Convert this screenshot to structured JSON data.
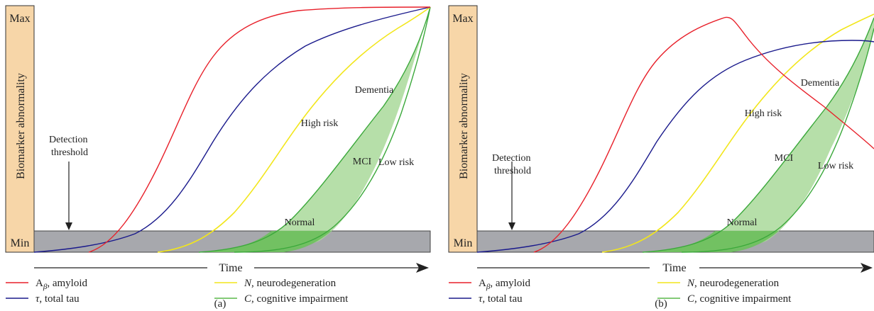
{
  "panels": [
    {
      "id": "a",
      "caption": "(a)",
      "y_axis": {
        "label": "Biomarker abnormality",
        "max": "Max",
        "min": "Min"
      },
      "x_axis": {
        "label": "Time"
      },
      "detection_threshold": "Detection\nthreshold",
      "region_labels": {
        "normal": "Normal",
        "mci": "MCI",
        "dementia": "Dementia",
        "high_risk": "High risk",
        "low_risk": "Low risk"
      },
      "legend": [
        {
          "id": "amyloid",
          "prefix": "A",
          "sub": "β",
          "text": ", amyloid",
          "color": "#e8202a"
        },
        {
          "id": "tau",
          "prefix": "τ",
          "sub": "",
          "text": ", total tau",
          "color": "#1a1a8c"
        },
        {
          "id": "neuro",
          "prefix": "N",
          "sub": "",
          "text": ", neurodegeneration",
          "color": "#f2e61b"
        },
        {
          "id": "cog",
          "prefix": "C",
          "sub": "",
          "text": ", cognitive impairment",
          "color": "#5ab84a"
        }
      ]
    },
    {
      "id": "b",
      "caption": "(b)",
      "y_axis": {
        "label": "Biomarker abnormality",
        "max": "Max",
        "min": "Min"
      },
      "x_axis": {
        "label": "Time"
      },
      "detection_threshold": "Detection\nthreshold",
      "region_labels": {
        "normal": "Normal",
        "mci": "MCI",
        "dementia": "Dementia",
        "high_risk": "High risk",
        "low_risk": "Low risk"
      },
      "legend": [
        {
          "id": "amyloid",
          "prefix": "A",
          "sub": "β",
          "text": ", amyloid",
          "color": "#e8202a"
        },
        {
          "id": "tau",
          "prefix": "τ",
          "sub": "",
          "text": ", total tau",
          "color": "#1a1a8c"
        },
        {
          "id": "neuro",
          "prefix": "N",
          "sub": "",
          "text": ", neurodegeneration",
          "color": "#f2e61b"
        },
        {
          "id": "cog",
          "prefix": "C",
          "sub": "",
          "text": ", cognitive impairment",
          "color": "#5ab84a"
        }
      ]
    }
  ],
  "colors": {
    "axis_bar": "#f7d6a8",
    "threshold_band": "#a7a8ad",
    "cognitive_fill": "#a9d99a",
    "cognitive_fill_overlap": "#6bbf5c"
  }
}
